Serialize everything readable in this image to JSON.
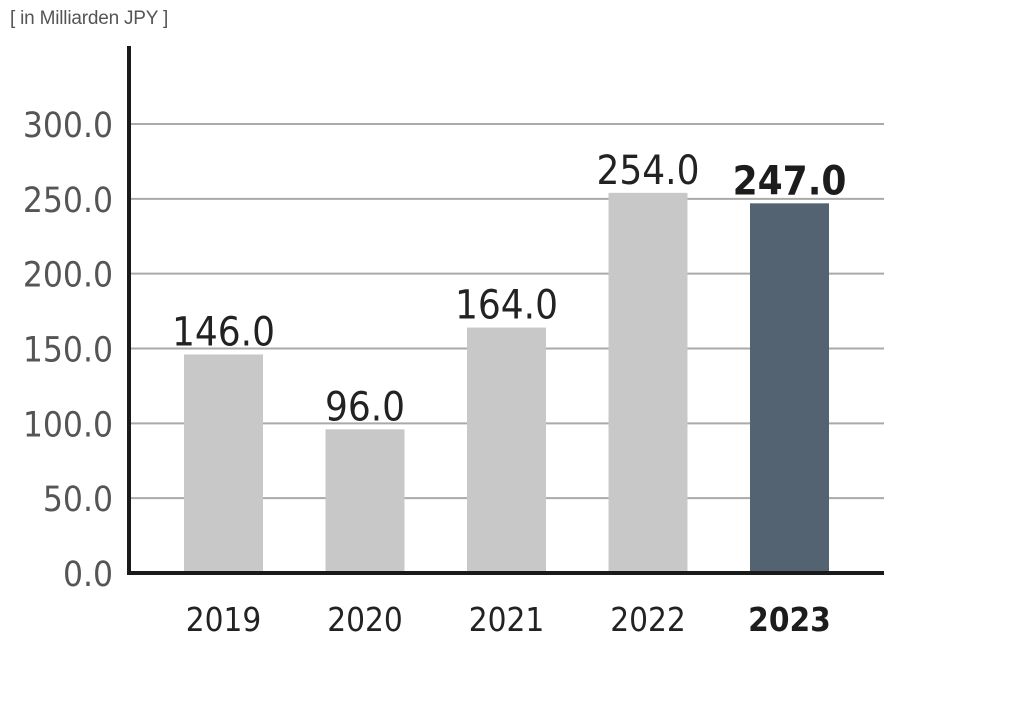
{
  "chart_data": {
    "type": "bar",
    "unit_label": "[ in Milliarden JPY ]",
    "categories": [
      "2019",
      "2020",
      "2021",
      "2022",
      "2023"
    ],
    "values": [
      146.0,
      96.0,
      164.0,
      254.0,
      247.0
    ],
    "value_labels": [
      "146.0",
      "96.0",
      "164.0",
      "254.0",
      "247.0"
    ],
    "highlight_index": 4,
    "ylim": [
      0,
      300
    ],
    "yticks": [
      0,
      50,
      100,
      150,
      200,
      250,
      300
    ],
    "ytick_labels": [
      "0.0",
      "50.0",
      "100.0",
      "150.0",
      "200.0",
      "250.0",
      "300.0"
    ],
    "grid": true,
    "legend": "none",
    "colors": {
      "bar": "#c8c8c8",
      "highlight_bar": "#536372",
      "gridline": "#aaaaaa",
      "axis": "#1a1a1a"
    }
  }
}
